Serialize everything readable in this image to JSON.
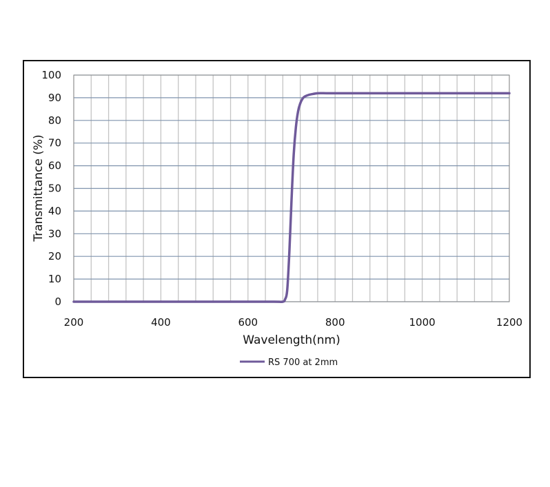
{
  "chart_data": {
    "type": "line",
    "title": "",
    "xlabel": "Wavelength(nm)",
    "ylabel": "Transmittance (%)",
    "xlim": [
      200,
      1200
    ],
    "ylim": [
      0,
      100
    ],
    "x_ticks": [
      200,
      400,
      600,
      800,
      1000,
      1200
    ],
    "y_ticks": [
      0,
      10,
      20,
      30,
      40,
      50,
      60,
      70,
      80,
      90,
      100
    ],
    "x_minor_step": 40,
    "grid": true,
    "legend_position": "bottom",
    "series": [
      {
        "name": "RS 700 at 2mm",
        "color": "#6f5a9a",
        "x": [
          200,
          300,
          400,
          500,
          600,
          660,
          680,
          685,
          690,
          695,
          700,
          705,
          710,
          715,
          720,
          725,
          730,
          740,
          750,
          760,
          780,
          800,
          900,
          1000,
          1100,
          1200
        ],
        "y": [
          0,
          0,
          0,
          0,
          0,
          0,
          0,
          1,
          5,
          22,
          45,
          65,
          77,
          84,
          87.5,
          89.5,
          90.5,
          91.3,
          91.7,
          92,
          92,
          92,
          92,
          92,
          92,
          92
        ]
      }
    ]
  },
  "legend": {
    "label": "RS 700 at 2mm"
  },
  "axes": {
    "xlabel": "Wavelength(nm)",
    "ylabel": "Transmittance (%)"
  }
}
